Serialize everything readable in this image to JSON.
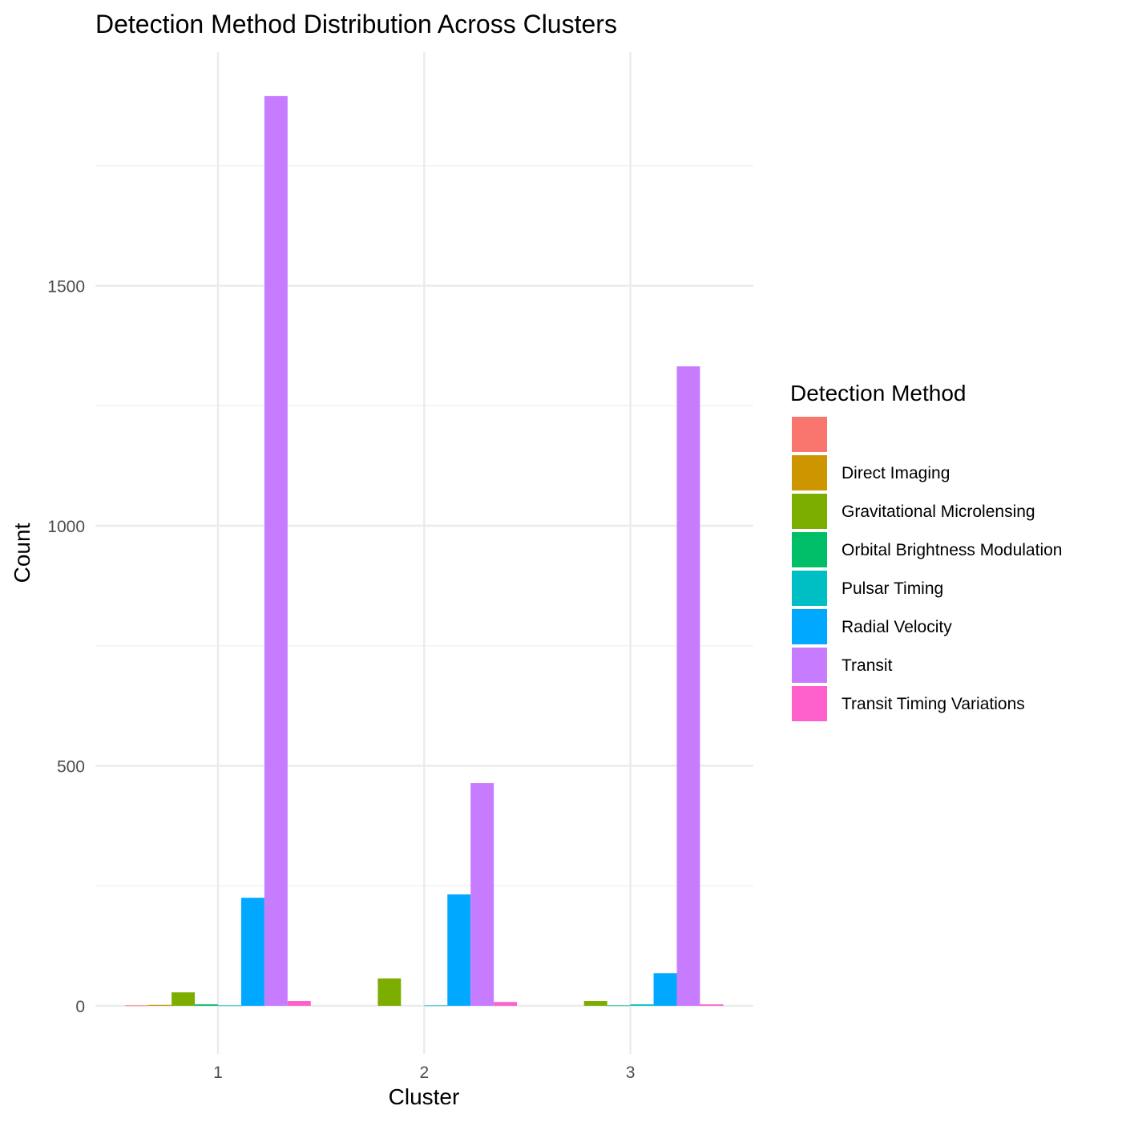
{
  "chart_data": {
    "type": "bar",
    "title": "Detection Method Distribution Across Clusters",
    "xlabel": "Cluster",
    "ylabel": "Count",
    "categories": [
      "1",
      "2",
      "3"
    ],
    "ylim": [
      -100,
      1990
    ],
    "yticks": [
      0,
      500,
      1000,
      1500
    ],
    "legend_title": "Detection Method",
    "legend_position": "right",
    "grid": true,
    "series": [
      {
        "name": "",
        "color": "#F8766D",
        "values": [
          1,
          0,
          0
        ]
      },
      {
        "name": "Direct Imaging",
        "color": "#CD9600",
        "values": [
          2,
          0,
          0
        ]
      },
      {
        "name": "Gravitational Microlensing",
        "color": "#7CAE00",
        "values": [
          28,
          57,
          10
        ]
      },
      {
        "name": "Orbital Brightness Modulation",
        "color": "#00BE67",
        "values": [
          3,
          0,
          1
        ]
      },
      {
        "name": "Pulsar Timing",
        "color": "#00BFC4",
        "values": [
          1,
          1,
          3
        ]
      },
      {
        "name": "Radial Velocity",
        "color": "#00A9FF",
        "values": [
          225,
          232,
          68
        ]
      },
      {
        "name": "Transit",
        "color": "#C77CFF",
        "values": [
          1895,
          464,
          1332
        ]
      },
      {
        "name": "Transit Timing Variations",
        "color": "#FF61CC",
        "values": [
          10,
          8,
          3
        ]
      }
    ]
  }
}
